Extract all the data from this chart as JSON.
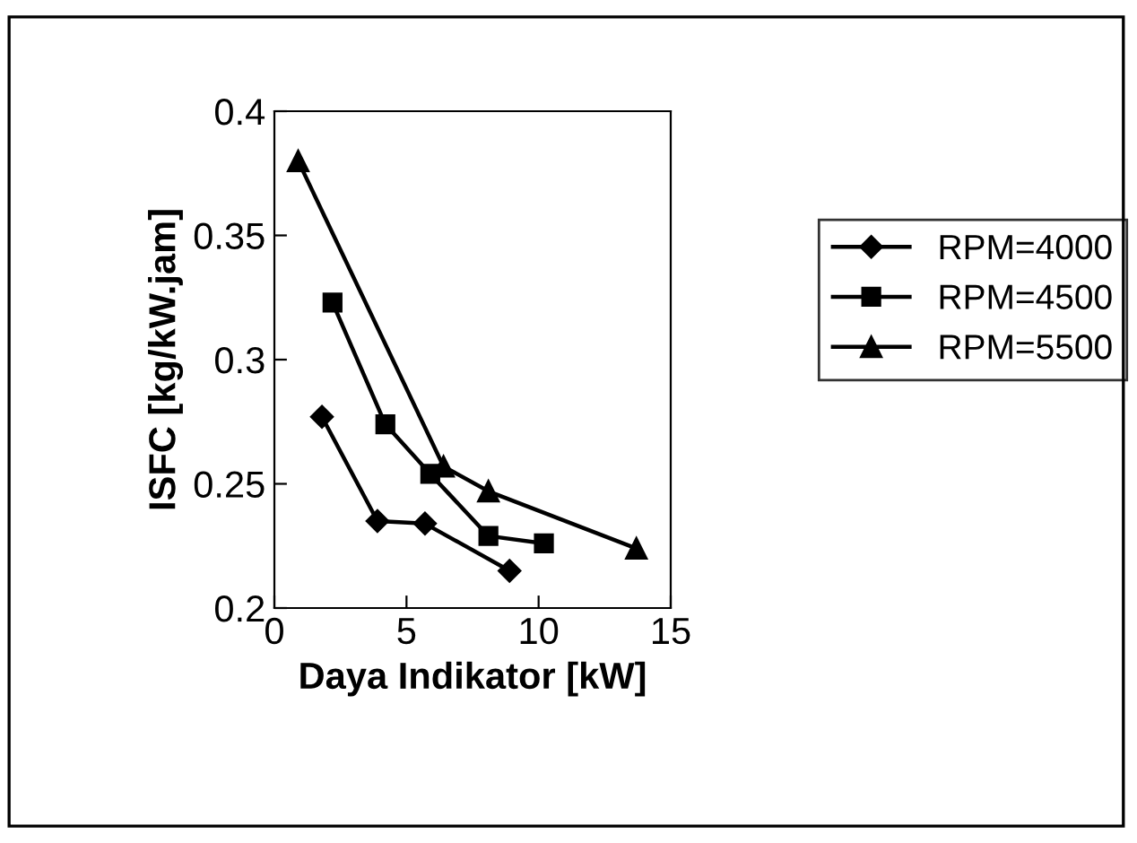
{
  "chart_data": {
    "type": "line",
    "xlabel": "Daya Indikator [kW]",
    "ylabel": "ISFC [kg/kW.jam]",
    "xlim": [
      0,
      15
    ],
    "xticks": [
      0,
      5,
      10,
      15
    ],
    "ylim": [
      0.2,
      0.4
    ],
    "yticks": [
      {
        "value": 0.2,
        "label": "0.2"
      },
      {
        "value": 0.25,
        "label": "0.25"
      },
      {
        "value": 0.3,
        "label": "0.3"
      },
      {
        "value": 0.35,
        "label": "0.35"
      },
      {
        "value": 0.4,
        "label": "0.4"
      }
    ],
    "grid": false,
    "legend": "right",
    "series": [
      {
        "name": "RPM=4000",
        "color": "#000000",
        "marker": "diamond",
        "x": [
          1.8,
          3.9,
          5.7,
          8.9
        ],
        "values": [
          0.277,
          0.235,
          0.234,
          0.215
        ]
      },
      {
        "name": "RPM=4500",
        "color": "#000000",
        "marker": "square",
        "x": [
          2.2,
          4.2,
          5.9,
          8.1,
          10.2
        ],
        "values": [
          0.323,
          0.274,
          0.254,
          0.229,
          0.226
        ]
      },
      {
        "name": "RPM=5500",
        "color": "#000000",
        "marker": "triangle",
        "x": [
          0.9,
          6.4,
          8.1,
          13.7
        ],
        "values": [
          0.38,
          0.257,
          0.247,
          0.224
        ]
      }
    ]
  }
}
